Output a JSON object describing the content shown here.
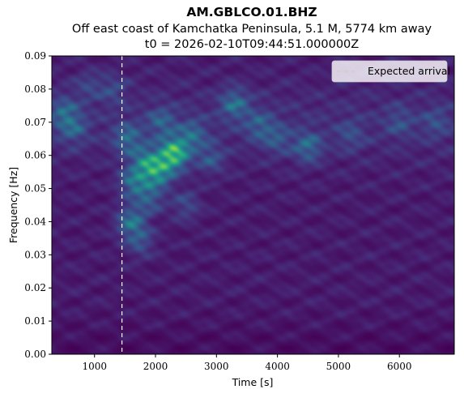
{
  "chart_data": {
    "type": "heatmap",
    "title": "AM.GBLCO.01.BHZ",
    "subtitle_line1": "Off east coast of Kamchatka Peninsula, 5.1 M, 5774 km away",
    "subtitle_line2": "t0 = 2026-02-10T09:44:51.000000Z",
    "xlabel": "Time [s]",
    "ylabel": "Frequency [Hz]",
    "xlim": [
      300,
      6900
    ],
    "ylim": [
      0.0,
      0.09
    ],
    "x_ticks": [
      1000,
      2000,
      3000,
      4000,
      5000,
      6000
    ],
    "x_tick_labels": [
      "1000",
      "2000",
      "3000",
      "4000",
      "5000",
      "6000"
    ],
    "y_ticks": [
      0.0,
      0.01,
      0.02,
      0.03,
      0.04,
      0.05,
      0.06,
      0.07,
      0.08,
      0.09
    ],
    "y_tick_labels": [
      "0.00",
      "0.01",
      "0.02",
      "0.03",
      "0.04",
      "0.05",
      "0.06",
      "0.07",
      "0.08",
      "0.09"
    ],
    "colormap": "viridis",
    "expected_arrival_time": 1450,
    "legend": {
      "label": "Expected arrival",
      "placement": "upper-right"
    },
    "arrival_line_color": "#ffffff",
    "intensity_peaks": [
      {
        "t": 2300,
        "f": 0.0605,
        "power": 1.0
      },
      {
        "t": 2050,
        "f": 0.055,
        "power": 0.65
      },
      {
        "t": 1850,
        "f": 0.058,
        "power": 0.55
      },
      {
        "t": 1650,
        "f": 0.052,
        "power": 0.5
      },
      {
        "t": 1600,
        "f": 0.04,
        "power": 0.5
      },
      {
        "t": 1550,
        "f": 0.065,
        "power": 0.4
      },
      {
        "t": 2600,
        "f": 0.066,
        "power": 0.38
      },
      {
        "t": 3300,
        "f": 0.0755,
        "power": 0.42
      },
      {
        "t": 4500,
        "f": 0.0625,
        "power": 0.4
      },
      {
        "t": 500,
        "f": 0.073,
        "power": 0.35
      },
      {
        "t": 650,
        "f": 0.068,
        "power": 0.3
      },
      {
        "t": 2100,
        "f": 0.07,
        "power": 0.32
      },
      {
        "t": 3700,
        "f": 0.069,
        "power": 0.3
      },
      {
        "t": 2900,
        "f": 0.059,
        "power": 0.28
      },
      {
        "t": 1900,
        "f": 0.047,
        "power": 0.35
      },
      {
        "t": 4000,
        "f": 0.065,
        "power": 0.26
      },
      {
        "t": 5200,
        "f": 0.066,
        "power": 0.2
      },
      {
        "t": 6000,
        "f": 0.07,
        "power": 0.2
      },
      {
        "t": 6600,
        "f": 0.07,
        "power": 0.2
      },
      {
        "t": 1300,
        "f": 0.08,
        "power": 0.2
      },
      {
        "t": 900,
        "f": 0.081,
        "power": 0.18
      },
      {
        "t": 2500,
        "f": 0.045,
        "power": 0.24
      },
      {
        "t": 1750,
        "f": 0.034,
        "power": 0.28
      }
    ]
  }
}
